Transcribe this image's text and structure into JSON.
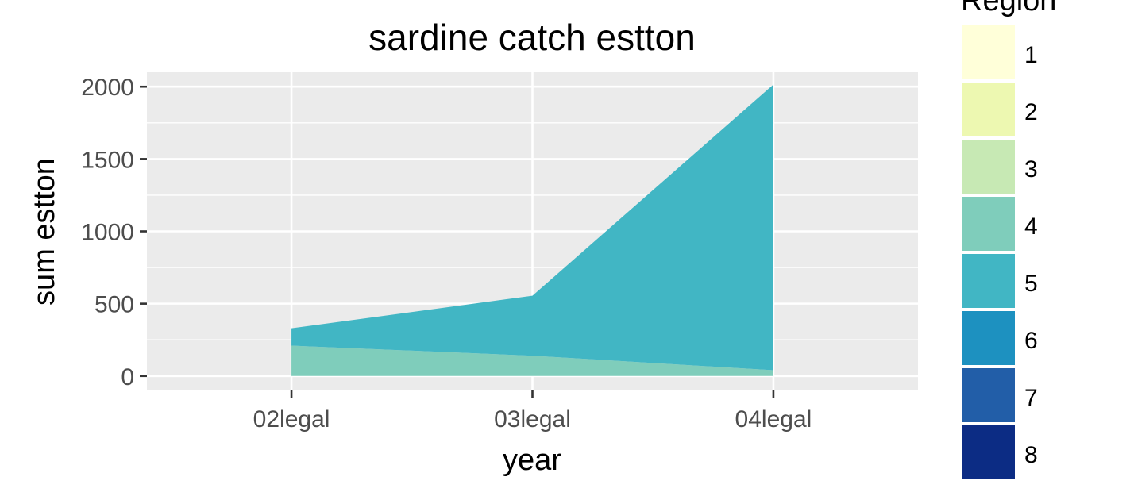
{
  "chart_data": {
    "type": "area",
    "title": "sardine catch estton",
    "xlabel": "year",
    "ylabel": "sum estton",
    "categories": [
      "02legal",
      "03legal",
      "04legal"
    ],
    "y_ticks": [
      "0",
      "500",
      "1000",
      "1500",
      "2000"
    ],
    "y_tick_values": [
      0,
      500,
      1000,
      1500,
      2000
    ],
    "ylim": [
      -100,
      2100
    ],
    "stacked": true,
    "grid": true,
    "legend": {
      "title": "Region",
      "position": "right",
      "entries": [
        {
          "label": "1",
          "color": "#ffffd9"
        },
        {
          "label": "2",
          "color": "#edf8b1"
        },
        {
          "label": "3",
          "color": "#c7e9b4"
        },
        {
          "label": "4",
          "color": "#7fcdbb"
        },
        {
          "label": "5",
          "color": "#41b6c4"
        },
        {
          "label": "6",
          "color": "#1d91c0"
        },
        {
          "label": "7",
          "color": "#225ea8"
        },
        {
          "label": "8",
          "color": "#0c2c84"
        }
      ]
    },
    "series": [
      {
        "name": "4",
        "color": "#7fcdbb",
        "values": [
          210,
          140,
          40
        ]
      },
      {
        "name": "5",
        "color": "#41b6c4",
        "values": [
          120,
          415,
          1975
        ]
      }
    ]
  },
  "style": {
    "panel_background": "#ebebeb",
    "grid_color": "#ffffff",
    "tick_color": "#333333"
  }
}
